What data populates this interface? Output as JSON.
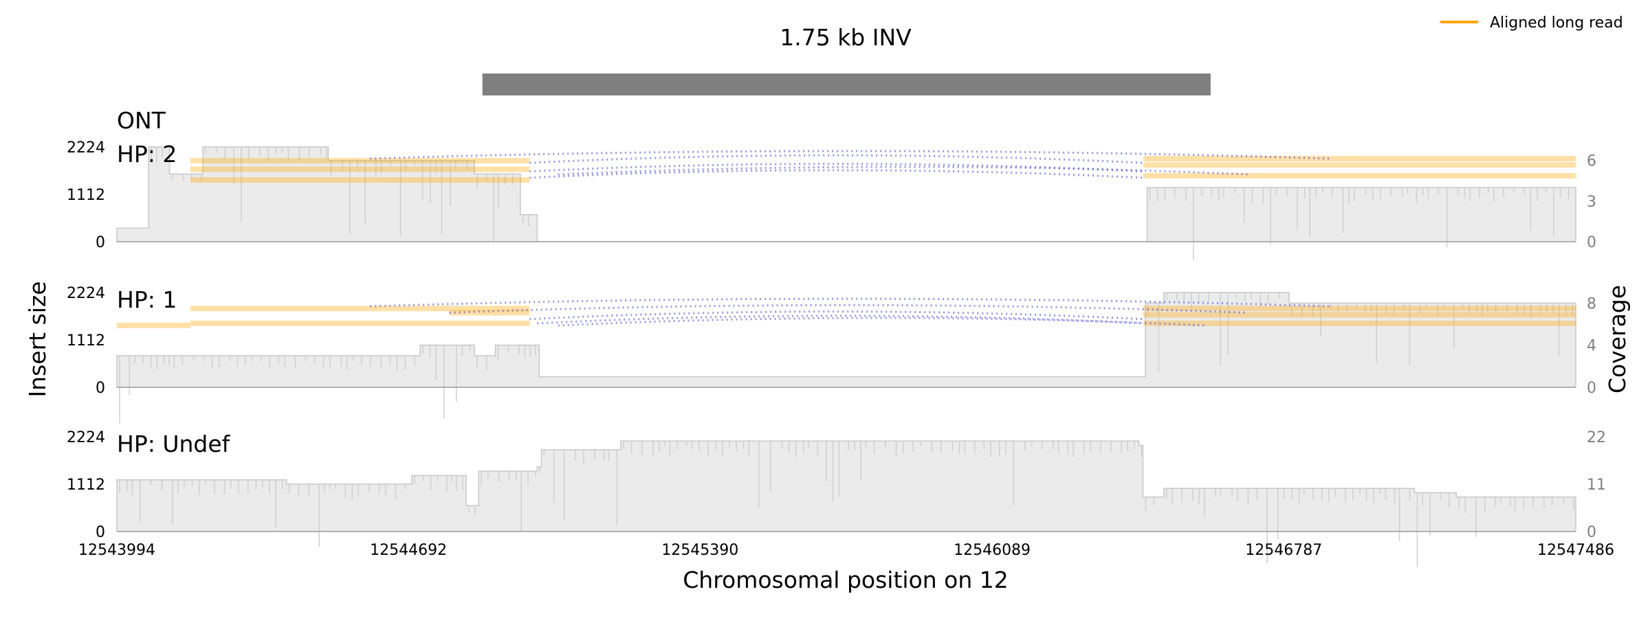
{
  "chart_data": {
    "type": "line",
    "title": "1.75 kb INV",
    "sv_region": {
      "start": 12544869,
      "end": 12546612
    },
    "xlabel": "Chromosomal position on 12",
    "ylabel_left": "Insert size",
    "ylabel_right": "Coverage",
    "xlim": [
      12543994,
      12547486
    ],
    "xticks": [
      "12543994",
      "12544692",
      "12545390",
      "12546089",
      "12546787",
      "12547486"
    ],
    "legend": {
      "label": "Aligned long read",
      "color": "#ffa500",
      "placement": "top-right"
    },
    "grid": false,
    "panels": [
      {
        "label": "HP: 2",
        "title_above": "ONT",
        "yticks_left": [
          "0",
          "1112",
          "2224"
        ],
        "yticks_right": [
          "0",
          "3",
          "6"
        ],
        "coverage_max": 7,
        "coverage": [
          [
            12543994,
            1
          ],
          [
            12544070,
            7
          ],
          [
            12544120,
            5
          ],
          [
            12544200,
            7
          ],
          [
            12544350,
            7
          ],
          [
            12544500,
            6
          ],
          [
            12544700,
            6
          ],
          [
            12544850,
            5
          ],
          [
            12544960,
            2
          ],
          [
            12545000,
            0
          ],
          [
            12546450,
            0
          ],
          [
            12546460,
            4
          ],
          [
            12547486,
            4
          ]
        ],
        "reads": [
          {
            "start": 12544170,
            "end": 12544982,
            "ins": 1450
          },
          {
            "start": 12544170,
            "end": 12544982,
            "ins": 1700
          },
          {
            "start": 12544170,
            "end": 12544982,
            "ins": 1900
          },
          {
            "start": 12546451,
            "end": 12547486,
            "ins": 1550
          },
          {
            "start": 12546451,
            "end": 12547486,
            "ins": 1800
          },
          {
            "start": 12546451,
            "end": 12547486,
            "ins": 1950
          }
        ],
        "arcs": [
          {
            "start": 12544600,
            "end": 12546900,
            "ins": 1950
          },
          {
            "start": 12544982,
            "end": 12546451,
            "ins": 1850
          },
          {
            "start": 12544982,
            "end": 12546451,
            "ins": 1650
          },
          {
            "start": 12544982,
            "end": 12546451,
            "ins": 1500
          },
          {
            "start": 12545050,
            "end": 12546700,
            "ins": 1580
          }
        ]
      },
      {
        "label": "HP: 1",
        "yticks_left": [
          "0",
          "1112",
          "2224"
        ],
        "yticks_right": [
          "0",
          "4",
          "8"
        ],
        "coverage_max": 9,
        "coverage": [
          [
            12543994,
            3
          ],
          [
            12544700,
            3
          ],
          [
            12544720,
            4
          ],
          [
            12544800,
            4
          ],
          [
            12544850,
            3
          ],
          [
            12544900,
            4
          ],
          [
            12545000,
            4
          ],
          [
            12545005,
            1
          ],
          [
            12546451,
            1
          ],
          [
            12546456,
            8
          ],
          [
            12546500,
            9
          ],
          [
            12546800,
            8
          ],
          [
            12547486,
            8
          ]
        ],
        "reads": [
          {
            "start": 12544170,
            "end": 12544982,
            "ins": 1850
          },
          {
            "start": 12544170,
            "end": 12544982,
            "ins": 1500
          },
          {
            "start": 12543994,
            "end": 12544170,
            "ins": 1450
          },
          {
            "start": 12544790,
            "end": 12544982,
            "ins": 1750
          },
          {
            "start": 12546451,
            "end": 12547486,
            "ins": 1850
          },
          {
            "start": 12546451,
            "end": 12547486,
            "ins": 1700
          },
          {
            "start": 12546451,
            "end": 12547486,
            "ins": 1500
          }
        ],
        "arcs": [
          {
            "start": 12544600,
            "end": 12546900,
            "ins": 1900
          },
          {
            "start": 12544790,
            "end": 12546700,
            "ins": 1750
          },
          {
            "start": 12544982,
            "end": 12546451,
            "ins": 1600
          },
          {
            "start": 12545000,
            "end": 12546451,
            "ins": 1500
          },
          {
            "start": 12545050,
            "end": 12546600,
            "ins": 1450
          }
        ]
      },
      {
        "label": "HP: Undef",
        "yticks_left": [
          "0",
          "1112",
          "2224"
        ],
        "yticks_right": [
          "0",
          "11",
          "22"
        ],
        "coverage_max": 22,
        "coverage": [
          [
            12543994,
            12
          ],
          [
            12544200,
            12
          ],
          [
            12544400,
            11
          ],
          [
            12544700,
            13
          ],
          [
            12544800,
            13
          ],
          [
            12544830,
            6
          ],
          [
            12544860,
            14
          ],
          [
            12545000,
            15
          ],
          [
            12545010,
            19
          ],
          [
            12545200,
            21
          ],
          [
            12545500,
            21
          ],
          [
            12545800,
            21
          ],
          [
            12546100,
            21
          ],
          [
            12546440,
            20
          ],
          [
            12546450,
            8
          ],
          [
            12546500,
            10
          ],
          [
            12546800,
            10
          ],
          [
            12547100,
            9
          ],
          [
            12547200,
            8
          ],
          [
            12547486,
            7
          ]
        ],
        "reads": [],
        "arcs": []
      }
    ]
  }
}
